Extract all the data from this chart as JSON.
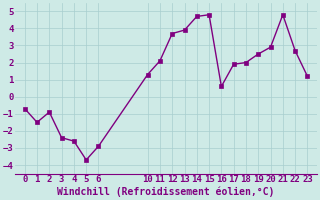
{
  "x": [
    0,
    1,
    2,
    3,
    4,
    5,
    6,
    10,
    11,
    12,
    13,
    14,
    15,
    16,
    17,
    18,
    19,
    20,
    21,
    22,
    23
  ],
  "y": [
    -0.7,
    -1.5,
    -0.9,
    -2.4,
    -2.6,
    -3.7,
    -2.9,
    1.3,
    2.1,
    3.7,
    3.9,
    4.7,
    4.8,
    0.6,
    1.9,
    2.0,
    2.5,
    2.9,
    4.8,
    2.7,
    1.2
  ],
  "line_color": "#800080",
  "marker": "s",
  "markersize": 2.5,
  "linewidth": 1.0,
  "bg_color": "#ceeae6",
  "grid_color": "#a8cece",
  "xlabel": "Windchill (Refroidissement éolien,°C)",
  "xlabel_color": "#800080",
  "xlabel_fontsize": 7,
  "tick_color": "#800080",
  "tick_fontsize": 6.5,
  "ylim": [
    -4.5,
    5.5
  ],
  "yticks": [
    -4,
    -3,
    -2,
    -1,
    0,
    1,
    2,
    3,
    4,
    5
  ],
  "xlim": [
    -0.8,
    23.8
  ],
  "xtick_positions": [
    0,
    1,
    2,
    3,
    4,
    5,
    6,
    10,
    11,
    12,
    13,
    14,
    15,
    16,
    17,
    18,
    19,
    20,
    21,
    22,
    23
  ],
  "xtick_labels": [
    "0",
    "1",
    "2",
    "3",
    "4",
    "5",
    "6",
    "10",
    "11",
    "12",
    "13",
    "14",
    "15",
    "16",
    "17",
    "18",
    "19",
    "20",
    "21",
    "22",
    "23"
  ]
}
